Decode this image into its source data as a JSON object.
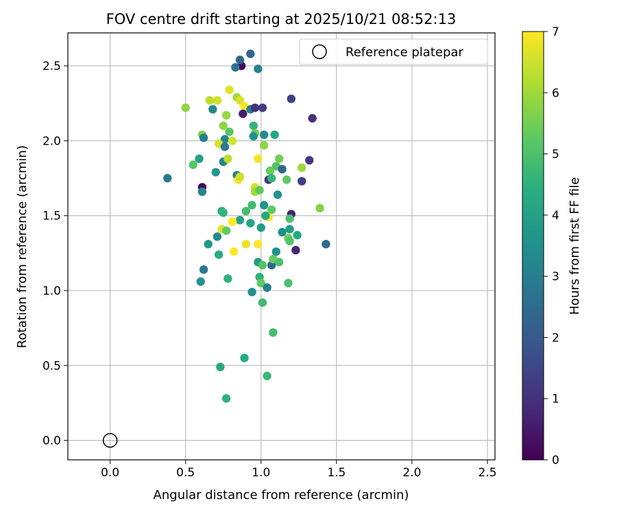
{
  "chart_data": {
    "type": "scatter",
    "title": "FOV centre drift starting at 2025/10/21 08:52:13",
    "xlabel": "Angular distance from reference (arcmin)",
    "ylabel": "Rotation from reference (arcmin)",
    "xlim": [
      -0.28,
      2.55
    ],
    "ylim": [
      -0.13,
      2.72
    ],
    "xticks": [
      0.0,
      0.5,
      1.0,
      1.5,
      2.0,
      2.5
    ],
    "xtick_labels": [
      "0.0",
      "0.5",
      "1.0",
      "1.5",
      "2.0",
      "2.5"
    ],
    "yticks": [
      0.0,
      0.5,
      1.0,
      1.5,
      2.0,
      2.5
    ],
    "ytick_labels": [
      "0.0",
      "0.5",
      "1.0",
      "1.5",
      "2.0",
      "2.5"
    ],
    "grid": true,
    "legend": {
      "position": "top-right",
      "entries": [
        "Reference platepar"
      ]
    },
    "reference_point": {
      "x": 0.0,
      "y": 0.0,
      "label": "Reference platepar"
    },
    "colorbar": {
      "label": "Hours from first FF file",
      "range": [
        0,
        7
      ],
      "ticks": [
        0,
        1,
        2,
        3,
        4,
        5,
        6,
        7
      ],
      "tick_labels": [
        "0",
        "1",
        "2",
        "3",
        "4",
        "5",
        "6",
        "7"
      ],
      "colormap": "viridis"
    },
    "points": [
      {
        "x": 0.87,
        "y": 2.5,
        "h": 0.2
      },
      {
        "x": 0.86,
        "y": 2.54,
        "h": 2.3
      },
      {
        "x": 0.93,
        "y": 2.58,
        "h": 2.3
      },
      {
        "x": 0.83,
        "y": 2.49,
        "h": 2.7
      },
      {
        "x": 0.98,
        "y": 2.48,
        "h": 3.1
      },
      {
        "x": 0.5,
        "y": 2.22,
        "h": 5.8
      },
      {
        "x": 0.66,
        "y": 2.27,
        "h": 6.3
      },
      {
        "x": 0.71,
        "y": 2.27,
        "h": 6.5
      },
      {
        "x": 0.68,
        "y": 2.21,
        "h": 3.3
      },
      {
        "x": 0.79,
        "y": 2.34,
        "h": 6.7
      },
      {
        "x": 0.84,
        "y": 2.29,
        "h": 6.0
      },
      {
        "x": 0.86,
        "y": 2.27,
        "h": 6.6
      },
      {
        "x": 0.89,
        "y": 2.23,
        "h": 6.9
      },
      {
        "x": 0.88,
        "y": 2.18,
        "h": 0.6
      },
      {
        "x": 0.93,
        "y": 2.21,
        "h": 3.0
      },
      {
        "x": 0.96,
        "y": 2.22,
        "h": 1.0
      },
      {
        "x": 1.01,
        "y": 2.22,
        "h": 1.2
      },
      {
        "x": 1.2,
        "y": 2.28,
        "h": 1.3
      },
      {
        "x": 1.34,
        "y": 2.15,
        "h": 1.0
      },
      {
        "x": 0.77,
        "y": 2.17,
        "h": 5.9
      },
      {
        "x": 0.75,
        "y": 2.1,
        "h": 5.8
      },
      {
        "x": 0.79,
        "y": 2.06,
        "h": 5.2
      },
      {
        "x": 0.61,
        "y": 2.04,
        "h": 5.6
      },
      {
        "x": 0.62,
        "y": 2.02,
        "h": 3.0
      },
      {
        "x": 0.76,
        "y": 2.01,
        "h": 3.2
      },
      {
        "x": 0.81,
        "y": 2.0,
        "h": 6.5
      },
      {
        "x": 0.72,
        "y": 1.98,
        "h": 6.6
      },
      {
        "x": 0.76,
        "y": 1.96,
        "h": 2.9
      },
      {
        "x": 0.95,
        "y": 2.1,
        "h": 4.6
      },
      {
        "x": 0.96,
        "y": 2.05,
        "h": 5.5
      },
      {
        "x": 0.95,
        "y": 2.03,
        "h": 3.6
      },
      {
        "x": 1.02,
        "y": 2.04,
        "h": 3.4
      },
      {
        "x": 1.09,
        "y": 2.04,
        "h": 4.2
      },
      {
        "x": 1.02,
        "y": 1.97,
        "h": 5.8
      },
      {
        "x": 0.55,
        "y": 1.84,
        "h": 5.2
      },
      {
        "x": 0.59,
        "y": 1.88,
        "h": 4.0
      },
      {
        "x": 0.75,
        "y": 1.86,
        "h": 3.3
      },
      {
        "x": 0.78,
        "y": 1.88,
        "h": 6.3
      },
      {
        "x": 0.7,
        "y": 1.79,
        "h": 3.7
      },
      {
        "x": 0.38,
        "y": 1.75,
        "h": 2.8
      },
      {
        "x": 0.84,
        "y": 1.77,
        "h": 3.1
      },
      {
        "x": 0.85,
        "y": 1.74,
        "h": 6.9
      },
      {
        "x": 0.86,
        "y": 1.76,
        "h": 6.5
      },
      {
        "x": 0.98,
        "y": 1.88,
        "h": 6.9
      },
      {
        "x": 1.06,
        "y": 1.8,
        "h": 5.4
      },
      {
        "x": 1.05,
        "y": 1.74,
        "h": 1.1
      },
      {
        "x": 1.07,
        "y": 1.75,
        "h": 4.6
      },
      {
        "x": 1.1,
        "y": 1.83,
        "h": 5.1
      },
      {
        "x": 1.12,
        "y": 1.88,
        "h": 5.5
      },
      {
        "x": 1.14,
        "y": 1.81,
        "h": 2.3
      },
      {
        "x": 1.17,
        "y": 1.74,
        "h": 5.3
      },
      {
        "x": 1.27,
        "y": 1.82,
        "h": 6.0
      },
      {
        "x": 1.32,
        "y": 1.87,
        "h": 1.2
      },
      {
        "x": 1.27,
        "y": 1.73,
        "h": 1.3
      },
      {
        "x": 0.61,
        "y": 1.69,
        "h": 0.1
      },
      {
        "x": 0.61,
        "y": 1.66,
        "h": 3.2
      },
      {
        "x": 0.96,
        "y": 1.69,
        "h": 6.6
      },
      {
        "x": 0.96,
        "y": 1.66,
        "h": 6.0
      },
      {
        "x": 0.99,
        "y": 1.67,
        "h": 5.3
      },
      {
        "x": 1.11,
        "y": 1.64,
        "h": 3.6
      },
      {
        "x": 1.39,
        "y": 1.55,
        "h": 5.7
      },
      {
        "x": 0.74,
        "y": 1.53,
        "h": 4.2
      },
      {
        "x": 0.75,
        "y": 1.52,
        "h": 4.6
      },
      {
        "x": 0.9,
        "y": 1.53,
        "h": 4.9
      },
      {
        "x": 0.94,
        "y": 1.57,
        "h": 4.8
      },
      {
        "x": 1.02,
        "y": 1.57,
        "h": 3.6
      },
      {
        "x": 1.07,
        "y": 1.54,
        "h": 5.3
      },
      {
        "x": 1.05,
        "y": 1.49,
        "h": 6.9
      },
      {
        "x": 1.03,
        "y": 1.5,
        "h": 4.2
      },
      {
        "x": 1.2,
        "y": 1.51,
        "h": 0.7
      },
      {
        "x": 1.19,
        "y": 1.48,
        "h": 5.0
      },
      {
        "x": 0.86,
        "y": 1.47,
        "h": 4.0
      },
      {
        "x": 0.81,
        "y": 1.46,
        "h": 7.0
      },
      {
        "x": 0.93,
        "y": 1.45,
        "h": 4.1
      },
      {
        "x": 1.0,
        "y": 1.42,
        "h": 3.8
      },
      {
        "x": 0.74,
        "y": 1.41,
        "h": 6.7
      },
      {
        "x": 0.77,
        "y": 1.4,
        "h": 5.3
      },
      {
        "x": 0.71,
        "y": 1.36,
        "h": 3.3
      },
      {
        "x": 0.65,
        "y": 1.31,
        "h": 3.7
      },
      {
        "x": 0.9,
        "y": 1.31,
        "h": 6.8
      },
      {
        "x": 0.98,
        "y": 1.31,
        "h": 7.0
      },
      {
        "x": 1.14,
        "y": 1.39,
        "h": 3.5
      },
      {
        "x": 1.19,
        "y": 1.41,
        "h": 3.9
      },
      {
        "x": 1.18,
        "y": 1.35,
        "h": 5.5
      },
      {
        "x": 1.19,
        "y": 1.33,
        "h": 5.1
      },
      {
        "x": 1.24,
        "y": 1.37,
        "h": 4.3
      },
      {
        "x": 1.43,
        "y": 1.31,
        "h": 2.4
      },
      {
        "x": 0.82,
        "y": 1.26,
        "h": 7.0
      },
      {
        "x": 0.72,
        "y": 1.24,
        "h": 4.3
      },
      {
        "x": 0.62,
        "y": 1.14,
        "h": 2.8
      },
      {
        "x": 0.98,
        "y": 1.19,
        "h": 3.9
      },
      {
        "x": 1.01,
        "y": 1.17,
        "h": 5.1
      },
      {
        "x": 1.07,
        "y": 1.17,
        "h": 2.4
      },
      {
        "x": 1.08,
        "y": 1.21,
        "h": 5.4
      },
      {
        "x": 1.1,
        "y": 1.26,
        "h": 3.6
      },
      {
        "x": 1.12,
        "y": 1.19,
        "h": 5.0
      },
      {
        "x": 1.23,
        "y": 1.27,
        "h": 0.8
      },
      {
        "x": 0.6,
        "y": 1.06,
        "h": 3.6
      },
      {
        "x": 0.78,
        "y": 1.08,
        "h": 4.5
      },
      {
        "x": 0.99,
        "y": 1.09,
        "h": 4.5
      },
      {
        "x": 1.0,
        "y": 1.05,
        "h": 5.3
      },
      {
        "x": 1.04,
        "y": 1.02,
        "h": 3.1
      },
      {
        "x": 1.18,
        "y": 1.05,
        "h": 5.0
      },
      {
        "x": 0.94,
        "y": 0.99,
        "h": 3.5
      },
      {
        "x": 1.01,
        "y": 0.92,
        "h": 4.8
      },
      {
        "x": 1.08,
        "y": 0.72,
        "h": 4.9
      },
      {
        "x": 0.89,
        "y": 0.55,
        "h": 4.3
      },
      {
        "x": 0.73,
        "y": 0.49,
        "h": 4.2
      },
      {
        "x": 1.04,
        "y": 0.43,
        "h": 4.7
      },
      {
        "x": 0.77,
        "y": 0.28,
        "h": 4.5
      }
    ]
  }
}
